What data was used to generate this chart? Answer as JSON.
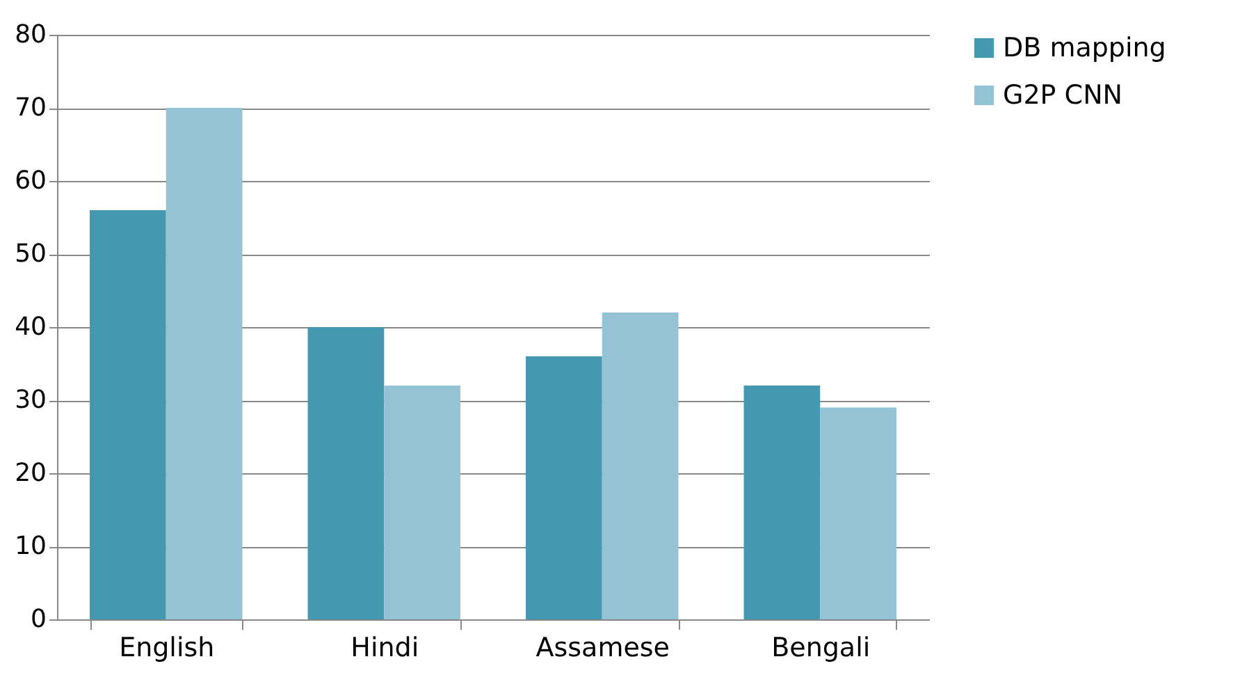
{
  "chart_data": {
    "type": "bar",
    "categories": [
      "English",
      "Hindi",
      "Assamese",
      "Bengali"
    ],
    "series": [
      {
        "name": "DB mapping",
        "color": "#4499b0",
        "values": [
          56,
          40,
          36,
          32
        ]
      },
      {
        "name": "G2P CNN",
        "color": "#93c3d5",
        "values": [
          70,
          32,
          42,
          29
        ]
      }
    ],
    "ylim": [
      0,
      80
    ],
    "yticks": [
      0,
      10,
      20,
      30,
      40,
      50,
      60,
      70,
      80
    ],
    "grid": "y",
    "legend": "right"
  }
}
